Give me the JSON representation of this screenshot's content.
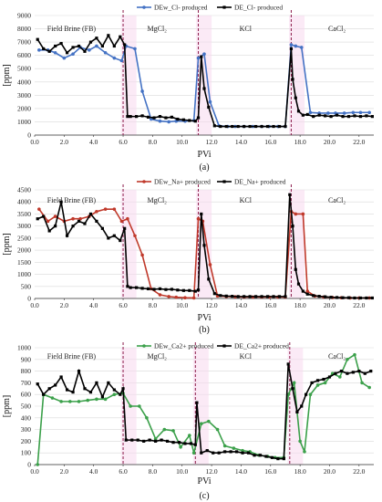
{
  "chart_data": [
    {
      "type": "line",
      "caption": "(a)",
      "ylabel": "[ppm]",
      "xlabel": "PVi",
      "xlim": [
        0,
        23
      ],
      "ylim": [
        0,
        9000
      ],
      "xticks": [
        "0.0",
        "2.0",
        "4.0",
        "6.0",
        "8.0",
        "10.0",
        "12.0",
        "14.0",
        "16.0",
        "18.0",
        "20.0",
        "22.0"
      ],
      "yticks": [
        "0",
        "1000",
        "2000",
        "3000",
        "4000",
        "5000",
        "6000",
        "7000",
        "8000",
        "9000"
      ],
      "stage_lines": [
        6.0,
        11.1,
        17.4
      ],
      "stage_labels": [
        {
          "text": "Field Brine (FB)",
          "x": 2.5
        },
        {
          "text": "MgCl₂",
          "x": 8.3
        },
        {
          "text": "KCl",
          "x": 14.3
        },
        {
          "text": "CaCl₂",
          "x": 20.5
        }
      ],
      "legend_position": "top-center",
      "series": [
        {
          "name": "DEw_Cl- produced",
          "color": "#4472C4",
          "x": [
            0.3,
            0.9,
            1.4,
            2.0,
            2.6,
            3.1,
            3.7,
            4.2,
            4.8,
            5.4,
            5.9,
            6.2,
            6.8,
            7.3,
            7.9,
            8.5,
            9.1,
            9.6,
            10.2,
            10.8,
            11.1,
            11.5,
            11.9,
            12.5,
            13.1,
            13.6,
            14.2,
            14.8,
            15.4,
            15.9,
            16.5,
            17.0,
            17.4,
            17.7,
            18.1,
            18.7,
            19.3,
            19.9,
            20.4,
            21.0,
            21.6,
            22.1,
            22.7
          ],
          "values": [
            6400,
            6400,
            6200,
            5800,
            6100,
            6600,
            6400,
            6700,
            6200,
            5800,
            5600,
            6700,
            6500,
            3300,
            1200,
            1050,
            1000,
            1050,
            1050,
            1100,
            5800,
            6100,
            2500,
            700,
            650,
            650,
            650,
            650,
            650,
            650,
            650,
            650,
            6800,
            6700,
            6600,
            1700,
            1650,
            1650,
            1650,
            1650,
            1700,
            1700,
            1700
          ]
        },
        {
          "name": "DE_Cl- produced",
          "color": "#000000",
          "x": [
            0.2,
            0.6,
            1.0,
            1.4,
            1.8,
            2.2,
            2.6,
            3.0,
            3.4,
            3.8,
            4.2,
            4.6,
            5.0,
            5.4,
            5.8,
            6.1,
            6.3,
            6.5,
            6.9,
            7.3,
            7.7,
            8.1,
            8.5,
            8.9,
            9.3,
            9.7,
            10.1,
            10.5,
            10.9,
            11.1,
            11.3,
            11.5,
            11.8,
            12.2,
            12.6,
            13.0,
            13.4,
            13.8,
            14.2,
            14.6,
            15.0,
            15.4,
            15.8,
            16.2,
            16.6,
            17.0,
            17.4,
            17.5,
            17.7,
            17.9,
            18.2,
            18.5,
            18.9,
            19.3,
            19.7,
            20.1,
            20.5,
            20.9,
            21.3,
            21.7,
            22.1,
            22.5,
            22.9
          ],
          "values": [
            7200,
            6500,
            6300,
            6700,
            6900,
            6200,
            6600,
            6700,
            6300,
            7000,
            7300,
            6700,
            7500,
            6700,
            7400,
            6800,
            1400,
            1400,
            1400,
            1450,
            1350,
            1300,
            1400,
            1300,
            1350,
            1200,
            1150,
            1100,
            1050,
            1300,
            5900,
            3500,
            2100,
            700,
            650,
            650,
            650,
            650,
            650,
            650,
            650,
            650,
            650,
            650,
            650,
            650,
            6500,
            4200,
            2800,
            1800,
            1500,
            1550,
            1400,
            1500,
            1450,
            1400,
            1500,
            1400,
            1400,
            1450,
            1400,
            1450,
            1400
          ]
        }
      ]
    },
    {
      "type": "line",
      "caption": "(b)",
      "ylabel": "[ppm]",
      "xlabel": "PVi",
      "xlim": [
        0,
        23
      ],
      "ylim": [
        0,
        4500
      ],
      "xticks": [
        "0.0",
        "2.0",
        "4.0",
        "6.0",
        "8.0",
        "10.0",
        "12.0",
        "14.0",
        "16.0",
        "18.0",
        "20.0",
        "22.0"
      ],
      "yticks": [
        "0",
        "500",
        "1000",
        "1500",
        "2000",
        "2500",
        "3000",
        "3500",
        "4000",
        "4500"
      ],
      "stage_lines": [
        6.0,
        11.1,
        17.4
      ],
      "stage_labels": [
        {
          "text": "Field Brine (FB)",
          "x": 2.5
        },
        {
          "text": "MgCl₂",
          "x": 8.3
        },
        {
          "text": "KCl",
          "x": 14.3
        },
        {
          "text": "CaCl₂",
          "x": 20.5
        }
      ],
      "legend_position": "top-center",
      "series": [
        {
          "name": "DEw_Na+ produced",
          "color": "#C0392B",
          "x": [
            0.3,
            0.9,
            1.4,
            2.0,
            2.6,
            3.1,
            3.7,
            4.2,
            4.8,
            5.4,
            5.9,
            6.3,
            6.8,
            7.3,
            7.9,
            8.5,
            9.1,
            9.6,
            10.2,
            10.8,
            11.1,
            11.4,
            11.9,
            12.4,
            13.0,
            13.6,
            14.2,
            14.8,
            15.4,
            15.9,
            16.5,
            17.0,
            17.4,
            17.7,
            18.2,
            18.5,
            19.0,
            19.6,
            20.2,
            20.8,
            21.4,
            22.0,
            22.7
          ],
          "values": [
            3700,
            3200,
            3400,
            3200,
            3300,
            3300,
            3400,
            3600,
            3700,
            3700,
            3200,
            3300,
            2600,
            1800,
            400,
            150,
            80,
            50,
            30,
            20,
            3300,
            3200,
            1400,
            100,
            80,
            70,
            60,
            60,
            60,
            60,
            60,
            60,
            3600,
            3500,
            3500,
            300,
            100,
            60,
            40,
            30,
            20,
            20,
            20
          ]
        },
        {
          "name": "DE_Na+ produced",
          "color": "#000000",
          "x": [
            0.2,
            0.6,
            1.0,
            1.4,
            1.8,
            2.2,
            2.6,
            3.0,
            3.4,
            3.8,
            4.2,
            4.6,
            5.0,
            5.4,
            5.8,
            6.1,
            6.3,
            6.5,
            6.9,
            7.3,
            7.7,
            8.1,
            8.5,
            8.9,
            9.3,
            9.7,
            10.1,
            10.5,
            10.9,
            11.1,
            11.3,
            11.5,
            11.8,
            12.2,
            12.6,
            13.0,
            13.4,
            13.8,
            14.2,
            14.6,
            15.0,
            15.4,
            15.8,
            16.2,
            16.6,
            17.0,
            17.3,
            17.5,
            17.7,
            17.9,
            18.2,
            18.5,
            18.9,
            19.3,
            19.7,
            20.1,
            20.5,
            20.9,
            21.3,
            21.7,
            22.1,
            22.5,
            22.9
          ],
          "values": [
            3300,
            3400,
            2800,
            3000,
            4000,
            2600,
            3000,
            3200,
            3100,
            3500,
            3200,
            2900,
            2500,
            2600,
            2400,
            2900,
            500,
            450,
            450,
            420,
            400,
            380,
            400,
            370,
            380,
            350,
            330,
            330,
            300,
            350,
            3500,
            2200,
            800,
            200,
            120,
            100,
            90,
            80,
            80,
            80,
            80,
            80,
            80,
            80,
            80,
            80,
            4300,
            3000,
            1200,
            600,
            300,
            180,
            120,
            90,
            70,
            50,
            40,
            30,
            30,
            20,
            20,
            20,
            20
          ]
        }
      ]
    },
    {
      "type": "line",
      "caption": "(c)",
      "ylabel": "[ppm]",
      "xlabel": "PVi",
      "xlim": [
        0,
        23
      ],
      "ylim": [
        0,
        1000
      ],
      "xticks": [
        "0.0",
        "2.0",
        "4.0",
        "6.0",
        "8.0",
        "10.0",
        "12.0",
        "14.0",
        "16.0",
        "18.0",
        "20.0",
        "22.0"
      ],
      "yticks": [
        "0",
        "100",
        "200",
        "300",
        "400",
        "500",
        "600",
        "700",
        "800",
        "900",
        "1000"
      ],
      "stage_lines": [
        6.0,
        10.9,
        17.3
      ],
      "stage_labels": [
        {
          "text": "Field Brine (FB)",
          "x": 2.5
        },
        {
          "text": "MgCl₂",
          "x": 8.3
        },
        {
          "text": "KCl",
          "x": 14.3
        },
        {
          "text": "CaCl₂",
          "x": 20.5
        }
      ],
      "legend_position": "top-center",
      "series": [
        {
          "name": "DEw_Ca2+ produced",
          "color": "#3BA04A",
          "x": [
            0.2,
            0.6,
            1.2,
            1.8,
            2.4,
            3.0,
            3.6,
            4.2,
            4.8,
            5.4,
            6.0,
            6.5,
            7.1,
            7.6,
            8.2,
            8.8,
            9.4,
            9.9,
            10.5,
            10.8,
            11.3,
            11.8,
            12.4,
            12.9,
            13.5,
            14.1,
            14.6,
            15.2,
            15.8,
            16.3,
            16.9,
            17.2,
            17.6,
            18.0,
            18.3,
            18.7,
            19.2,
            19.7,
            20.2,
            20.7,
            21.2,
            21.7,
            22.2,
            22.7
          ],
          "values": [
            0,
            600,
            570,
            540,
            540,
            540,
            550,
            560,
            560,
            600,
            610,
            500,
            500,
            400,
            220,
            300,
            290,
            150,
            250,
            100,
            350,
            370,
            300,
            160,
            140,
            120,
            110,
            80,
            70,
            60,
            60,
            600,
            700,
            200,
            110,
            600,
            680,
            700,
            780,
            750,
            900,
            940,
            700,
            660
          ]
        },
        {
          "name": "DE_Ca2+ produced",
          "color": "#000000",
          "x": [
            0.2,
            0.6,
            1.0,
            1.4,
            1.8,
            2.2,
            2.6,
            3.0,
            3.4,
            3.8,
            4.2,
            4.6,
            5.0,
            5.4,
            5.8,
            6.0,
            6.2,
            6.6,
            7.0,
            7.4,
            7.8,
            8.2,
            8.6,
            9.0,
            9.4,
            9.8,
            10.2,
            10.6,
            10.9,
            11.0,
            11.3,
            11.7,
            12.1,
            12.5,
            12.9,
            13.3,
            13.7,
            14.1,
            14.5,
            14.9,
            15.3,
            15.7,
            16.1,
            16.5,
            16.9,
            17.2,
            17.5,
            17.8,
            18.1,
            18.4,
            18.8,
            19.2,
            19.6,
            20.0,
            20.4,
            20.8,
            21.2,
            21.6,
            22.0,
            22.4,
            22.8
          ],
          "values": [
            690,
            600,
            650,
            680,
            750,
            640,
            620,
            800,
            650,
            620,
            700,
            580,
            700,
            640,
            600,
            650,
            210,
            210,
            210,
            200,
            210,
            200,
            210,
            200,
            190,
            190,
            180,
            180,
            170,
            530,
            100,
            120,
            100,
            100,
            110,
            110,
            110,
            100,
            100,
            80,
            80,
            70,
            60,
            50,
            50,
            860,
            650,
            450,
            500,
            600,
            700,
            720,
            730,
            750,
            780,
            800,
            780,
            790,
            800,
            780,
            800
          ]
        }
      ]
    }
  ]
}
